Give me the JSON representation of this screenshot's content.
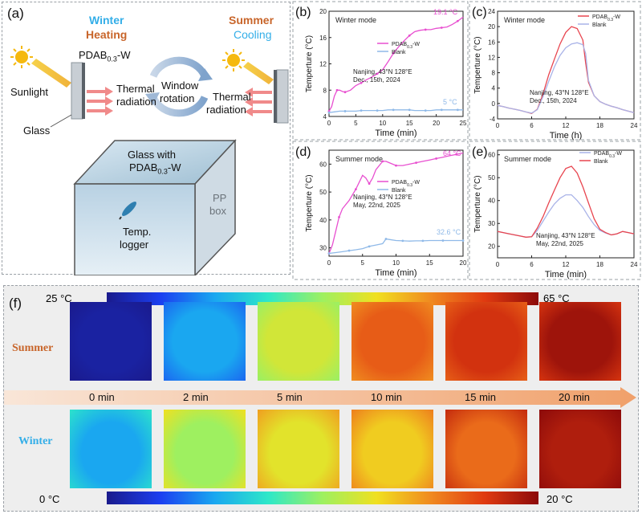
{
  "panel_a": {
    "label": "(a)",
    "winter_label": "Winter",
    "heating_label": "Heating",
    "summer_label": "Summer",
    "cooling_label": "Cooling",
    "sunlight_label": "Sunlight",
    "film_label": "PDAB",
    "film_sub": "0.3",
    "film_suffix": "-W",
    "thermal_label_1": "Thermal",
    "radiation_label_1": "radiation",
    "window_label": "Window",
    "rotation_label": "rotation",
    "thermal_label_2": "Thermal",
    "radiation_label_2": "radiation",
    "glass_label": "Glass",
    "box_glass_label": "Glass with",
    "box_film_label": "PDAB",
    "box_film_sub": "0.3",
    "box_film_suffix": "-W",
    "pp_label": "PP",
    "box_label": "box",
    "temp_label": "Temp.",
    "logger_label": "logger"
  },
  "colors": {
    "pdab": "#e84fd0",
    "blank": "#8fb9e8",
    "pdab_red": "#e8454f",
    "blank_lilac": "#a9b3e8",
    "winter": "#33aee8",
    "summer": "#c8652a"
  },
  "chart_data": [
    {
      "panel": "(b)",
      "type": "line",
      "title": "Winter mode",
      "xlabel": "Time (min)",
      "ylabel": "Temperture (°C)",
      "xlim": [
        0,
        25
      ],
      "ylim": [
        4,
        20
      ],
      "xticks": [
        "0",
        "5",
        "10",
        "15",
        "20",
        "25"
      ],
      "yticks": [
        "4",
        "8",
        "12",
        "16",
        "20"
      ],
      "series": [
        {
          "name": "PDAB0.3-W",
          "legend_main": "PDAB",
          "legend_sub": "0.3",
          "legend_suffix": "-W",
          "x": [
            0,
            0.5,
            1,
            1.5,
            2,
            2.5,
            3,
            4,
            5,
            6,
            7,
            8,
            9,
            10,
            11,
            12,
            13,
            14,
            15,
            16,
            17,
            18,
            19,
            20,
            21,
            22,
            23,
            24,
            25
          ],
          "y": [
            4.8,
            5.5,
            7.1,
            8.0,
            8.0,
            7.8,
            7.7,
            8.0,
            8.7,
            9.1,
            9.6,
            10.0,
            10.5,
            11.1,
            12.3,
            13.6,
            14.6,
            15.5,
            16.3,
            16.9,
            17.1,
            17.2,
            17.2,
            17.4,
            17.5,
            17.6,
            18.0,
            18.5,
            19.1
          ]
        },
        {
          "name": "Blank",
          "legend_main": "Blank",
          "legend_sub": "",
          "legend_suffix": "",
          "x": [
            0,
            1,
            2,
            3,
            4,
            5,
            6,
            7,
            8,
            9,
            10,
            11,
            12,
            13,
            14,
            15,
            16,
            17,
            18,
            19,
            20,
            21,
            22,
            23,
            24,
            25
          ],
          "y": [
            4.6,
            4.7,
            4.8,
            4.8,
            4.8,
            4.8,
            4.9,
            4.9,
            4.9,
            4.9,
            4.9,
            5.0,
            5.0,
            5.0,
            5.0,
            5.0,
            4.9,
            4.9,
            4.9,
            4.9,
            5.0,
            5.0,
            5.0,
            5.0,
            5.0,
            5.0
          ]
        }
      ],
      "peak_label": "19.1 °C",
      "end_label": "5 °C",
      "location": "Nanjing, 43°N 128°E",
      "date": "Dec., 15th, 2024"
    },
    {
      "panel": "(c)",
      "type": "line",
      "title": "Winter mode",
      "xlabel": "Time (h)",
      "ylabel": "Temperture (°C)",
      "xlim": [
        0,
        24
      ],
      "ylim": [
        -4,
        24
      ],
      "xticks": [
        "0",
        "6",
        "12",
        "18",
        "24"
      ],
      "yticks": [
        "-4",
        "0",
        "4",
        "8",
        "12",
        "16",
        "20",
        "24"
      ],
      "series": [
        {
          "name": "PDAB0.3-W",
          "legend_main": "PDAB",
          "legend_sub": "0.3",
          "legend_suffix": "-W",
          "x": [
            0,
            1,
            2,
            3,
            4,
            5,
            6,
            7,
            8,
            9,
            10,
            11,
            12,
            13,
            14,
            15,
            15.5,
            16,
            17,
            18,
            19,
            20,
            21,
            22,
            23,
            24
          ],
          "y": [
            -0.5,
            -0.8,
            -1.2,
            -1.5,
            -1.8,
            -2.2,
            -2.6,
            -1.5,
            2.5,
            7.5,
            11.5,
            15.5,
            18.5,
            20.0,
            19.5,
            16.5,
            10.5,
            5.5,
            2.0,
            0.5,
            -0.2,
            -0.7,
            -1.1,
            -1.6,
            -2.0,
            -2.4
          ]
        },
        {
          "name": "Blank",
          "legend_main": "Blank",
          "legend_sub": "",
          "legend_suffix": "",
          "x": [
            0,
            1,
            2,
            3,
            4,
            5,
            6,
            7,
            8,
            9,
            10,
            11,
            12,
            13,
            14,
            15,
            15.5,
            16,
            17,
            18,
            19,
            20,
            21,
            22,
            23,
            24
          ],
          "y": [
            -0.5,
            -0.8,
            -1.2,
            -1.5,
            -1.8,
            -2.2,
            -2.5,
            -1.6,
            1.8,
            5.8,
            9.5,
            12.5,
            14.5,
            15.5,
            15.8,
            15.3,
            13.0,
            6.0,
            2.0,
            0.5,
            -0.2,
            -0.7,
            -1.1,
            -1.6,
            -2.0,
            -2.4
          ]
        }
      ],
      "location": "Nanjing, 43°N 128°E",
      "date": "Dec., 15th, 2024"
    },
    {
      "panel": "(d)",
      "type": "line",
      "title": "Summer mode",
      "xlabel": "Time (min)",
      "ylabel": "Temperture (°C)",
      "xlim": [
        0,
        20
      ],
      "ylim": [
        27,
        65
      ],
      "xticks": [
        "0",
        "5",
        "10",
        "15",
        "20"
      ],
      "yticks": [
        "30",
        "40",
        "50",
        "60"
      ],
      "series": [
        {
          "name": "PDAB0.3-W",
          "legend_main": "PDAB",
          "legend_sub": "0.3",
          "legend_suffix": "-W",
          "x": [
            0,
            0.5,
            1,
            1.5,
            2,
            3,
            4,
            5,
            5.5,
            6,
            6.5,
            7,
            8,
            8.5,
            9,
            10,
            11,
            12,
            13,
            14,
            15,
            16,
            17,
            18,
            19,
            20
          ],
          "y": [
            28,
            31,
            36,
            41,
            44,
            47,
            51,
            56,
            55,
            53,
            55,
            58,
            61,
            61,
            60.5,
            59.5,
            59.5,
            60,
            60.5,
            61,
            61.5,
            62,
            62.5,
            63,
            63.5,
            64
          ]
        },
        {
          "name": "Blank",
          "legend_main": "Blank",
          "legend_sub": "",
          "legend_suffix": "",
          "x": [
            0,
            1,
            2,
            3,
            4,
            5,
            6,
            7,
            8,
            8.5,
            9,
            10,
            11,
            12,
            13,
            14,
            15,
            16,
            17,
            18,
            19,
            20
          ],
          "y": [
            28,
            28.3,
            28.6,
            29,
            29.3,
            29.7,
            30.5,
            31,
            31.5,
            33.2,
            33,
            32.6,
            32.5,
            32.4,
            32.5,
            32.5,
            32.6,
            32.6,
            32.6,
            32.6,
            32.6,
            32.6
          ]
        }
      ],
      "peak_label": "64 °C",
      "end_label": "32.6 °C",
      "location": "Nanjing, 43°N 128°E",
      "date": "May, 22nd, 2025"
    },
    {
      "panel": "(e)",
      "type": "line",
      "title": "Summer mode",
      "xlabel": "Time (min)",
      "ylabel": "Temperture (°C)",
      "xlim": [
        0,
        24
      ],
      "ylim": [
        15,
        62
      ],
      "xticks": [
        "0",
        "6",
        "12",
        "18",
        "24"
      ],
      "yticks": [
        "20",
        "30",
        "40",
        "50",
        "60"
      ],
      "series": [
        {
          "name": "PDAB0.3-W",
          "legend_main": "PDAB",
          "legend_sub": "0.3",
          "legend_suffix": "-W",
          "x": [
            0,
            1,
            2,
            3,
            4,
            5,
            6,
            7,
            8,
            9,
            10,
            11,
            12,
            13,
            14,
            15,
            16,
            17,
            18,
            19,
            20,
            21,
            22,
            23,
            24
          ],
          "y": [
            26.5,
            26,
            25.5,
            25,
            24.5,
            24,
            24.2,
            27,
            31,
            35,
            38.5,
            41,
            42.5,
            42.5,
            40,
            37,
            33,
            29.5,
            27,
            25.8,
            25,
            25.5,
            26.5,
            26,
            25.5
          ]
        },
        {
          "name": "Blank",
          "legend_main": "Blank",
          "legend_sub": "",
          "legend_suffix": "",
          "x": [
            0,
            1,
            2,
            3,
            4,
            5,
            6,
            7,
            8,
            9,
            10,
            11,
            12,
            13,
            14,
            15,
            16,
            17,
            18,
            19,
            20,
            21,
            22,
            23,
            24
          ],
          "y": [
            26.5,
            26,
            25.5,
            25,
            24.5,
            24,
            24.2,
            28,
            33,
            39,
            44.5,
            50,
            54,
            55,
            52,
            46,
            39,
            32,
            27.5,
            26,
            25,
            25.5,
            26.5,
            26,
            25.5
          ]
        }
      ],
      "location": "Nanjing, 43°N 128°E",
      "date": "May, 22nd, 2025"
    }
  ],
  "panel_f": {
    "label": "(f)",
    "top_scale_min": "25 °C",
    "top_scale_max": "65 °C",
    "bottom_scale_min": "0 °C",
    "bottom_scale_max": "20 °C",
    "summer_label": "Summer",
    "winter_label": "Winter",
    "times": [
      "0 min",
      "2 min",
      "5 min",
      "10 min",
      "15 min",
      "20 min"
    ],
    "summer_temps": [
      26,
      35,
      48,
      58,
      61,
      64
    ],
    "winter_temps": [
      5,
      10,
      12,
      13,
      16,
      19
    ]
  }
}
